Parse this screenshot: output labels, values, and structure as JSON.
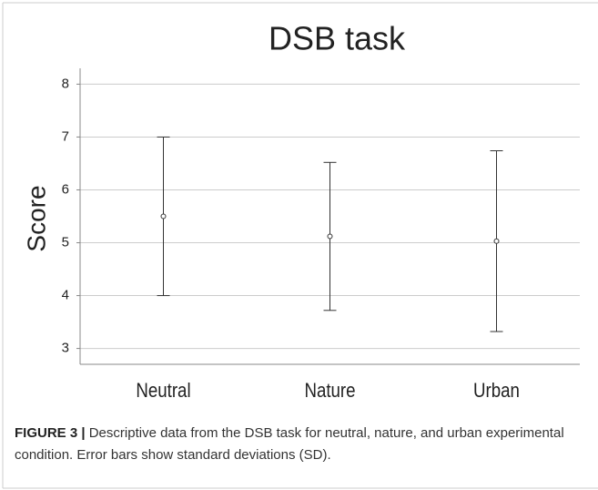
{
  "chart_data": {
    "type": "errorbar",
    "title": "DSB task",
    "y_label": "Score",
    "categories": [
      "Neutral",
      "Nature",
      "Urban"
    ],
    "values": [
      5.5,
      5.12,
      5.03
    ],
    "errors": [
      1.5,
      1.4,
      1.71
    ],
    "color": "#333333",
    "ylim": [
      2.7,
      8.3
    ],
    "yticks": [
      3,
      4,
      5,
      6,
      7,
      8
    ],
    "grid": true
  },
  "caption": {
    "label": "FIGURE 3 |",
    "text": "Descriptive data from the DSB task for neutral, nature, and urban experimental condition. Error bars show standard deviations (SD)."
  }
}
